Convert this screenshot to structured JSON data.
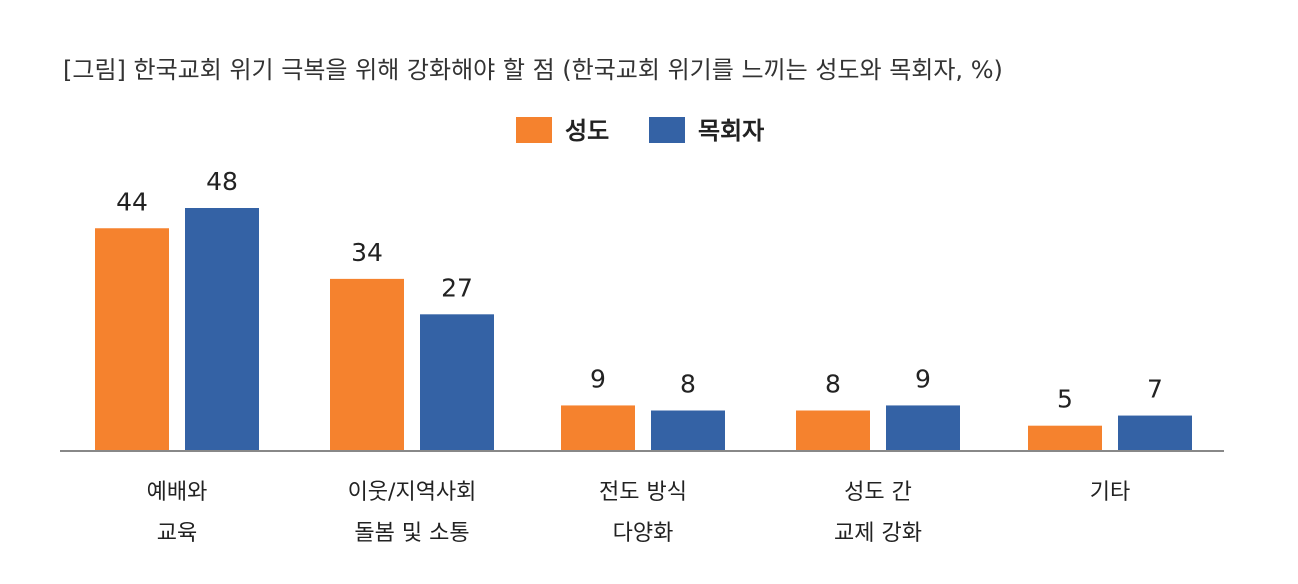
{
  "chart_data": {
    "type": "bar",
    "title": "[그림] 한국교회 위기 극복을 위해 강화해야 할 점 (한국교회 위기를 느끼는 성도와 목회자, %)",
    "categories": [
      [
        "예배와",
        "교육"
      ],
      [
        "이웃/지역사회",
        "돌봄 및 소통"
      ],
      [
        "전도 방식",
        "다양화"
      ],
      [
        "성도 간",
        "교제 강화"
      ],
      [
        "기타"
      ]
    ],
    "series": [
      {
        "name": "성도",
        "color": "#F5822E",
        "values": [
          44,
          34,
          9,
          8,
          5
        ]
      },
      {
        "name": "목회자",
        "color": "#3462A5",
        "values": [
          48,
          27,
          8,
          9,
          7
        ]
      }
    ],
    "ylim": [
      0,
      48
    ],
    "xlabel": "",
    "ylabel": "",
    "legend_position": "top-center",
    "grid": false
  }
}
